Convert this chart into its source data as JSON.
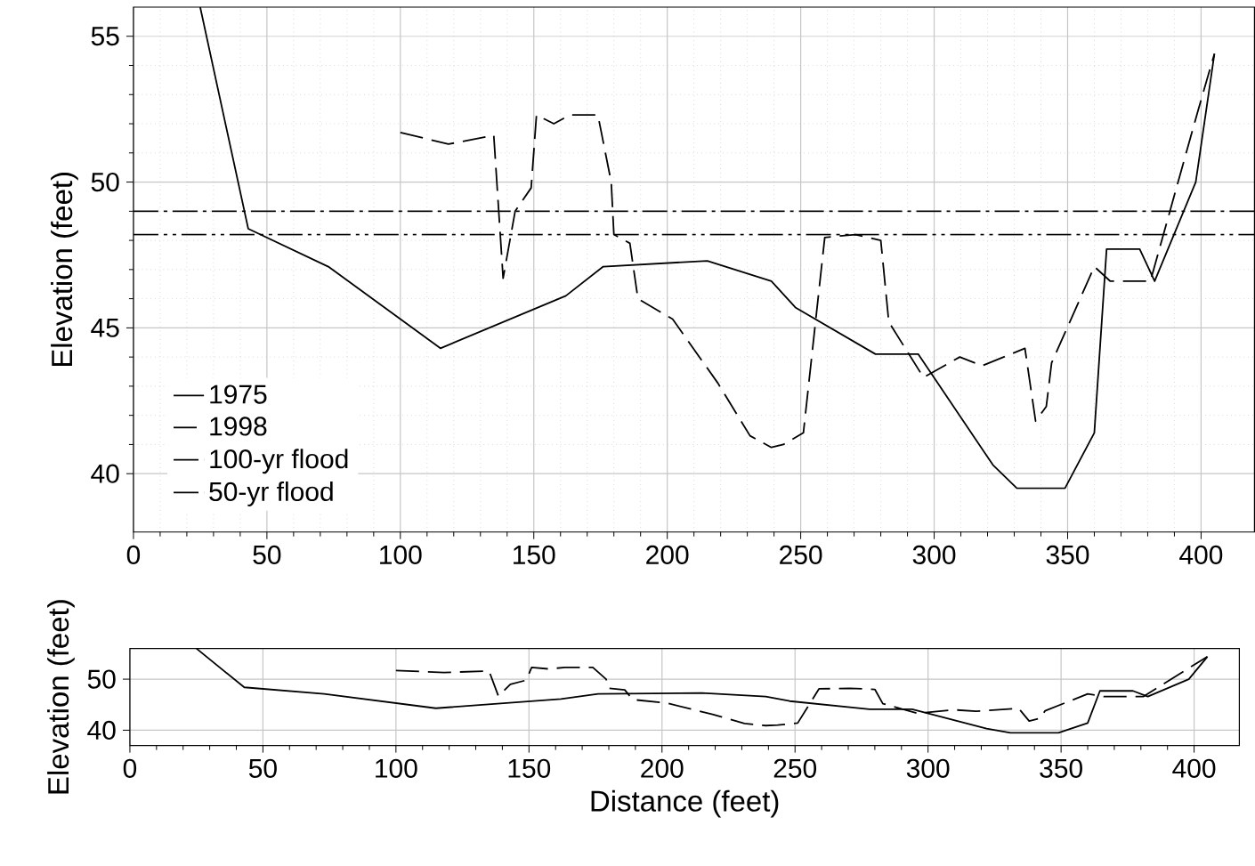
{
  "chart_data": [
    {
      "type": "line",
      "ylabel": "Elevation (feet)",
      "xlim": [
        0,
        420
      ],
      "ylim": [
        38,
        56
      ],
      "xticks": [
        0,
        50,
        100,
        150,
        200,
        250,
        300,
        350,
        400
      ],
      "yticks": [
        40,
        45,
        50,
        55
      ],
      "grid": true,
      "legend": "bottom left",
      "series": [
        {
          "name": "1975",
          "color": "#000000",
          "line_style": "solid",
          "x": [
            25,
            43,
            73,
            115,
            162,
            176,
            215,
            239,
            248,
            278,
            294,
            322,
            331,
            349,
            360,
            364.6,
            377,
            382.6,
            398,
            405
          ],
          "values": [
            56,
            48.4,
            47.1,
            44.3,
            46.1,
            47.1,
            47.3,
            46.6,
            45.7,
            44.1,
            44.1,
            40.3,
            39.5,
            39.5,
            41.4,
            47.7,
            47.7,
            46.6,
            50.0,
            54.4
          ]
        },
        {
          "name": "1998",
          "color": "#000000",
          "line_style": "dashed",
          "x": [
            100,
            118,
            135,
            138.5,
            143,
            149,
            151,
            157.5,
            163.5,
            174,
            179,
            180,
            186,
            189,
            202,
            219,
            231,
            239,
            243.5,
            251,
            259,
            270.5,
            280,
            283,
            296,
            309.6,
            318,
            334,
            338,
            342,
            344,
            360,
            366,
            381,
            399,
            405
          ],
          "values": [
            51.7,
            51.3,
            51.6,
            46.7,
            49.0,
            49.8,
            52.3,
            52.0,
            52.3,
            52.3,
            50.0,
            48.2,
            47.9,
            46.0,
            45.3,
            43.1,
            41.3,
            40.9,
            41.0,
            41.4,
            48.1,
            48.2,
            48.0,
            45.2,
            43.3,
            44.0,
            43.7,
            44.3,
            41.8,
            42.3,
            43.8,
            47.1,
            46.6,
            46.6,
            52.5,
            54.4
          ]
        }
      ],
      "ref_lines": [
        {
          "axis": "y",
          "value": 49.0,
          "label": "100-yr flood",
          "color": "#000000",
          "line_style": "dashdot"
        },
        {
          "axis": "y",
          "value": 48.2,
          "label": "50-yr flood",
          "color": "#000000",
          "line_style": "dashdotdot"
        }
      ]
    },
    {
      "type": "line",
      "xlabel": "Distance (feet)",
      "ylabel": "Elevation (feet)",
      "xlim": [
        0,
        417
      ],
      "ylim": [
        37,
        56
      ],
      "xticks": [
        0,
        50,
        100,
        150,
        200,
        250,
        300,
        350,
        400
      ],
      "yticks": [
        40,
        50
      ],
      "grid": true,
      "series": [
        {
          "color": "#000000",
          "line_style": "solid",
          "x": [
            25,
            43,
            73,
            115,
            162,
            176,
            215,
            239,
            248,
            278,
            294,
            322,
            331,
            349,
            360,
            364.6,
            377,
            382.6,
            398,
            405
          ],
          "values": [
            56,
            48.4,
            47.1,
            44.3,
            46.1,
            47.1,
            47.3,
            46.6,
            45.7,
            44.1,
            44.1,
            40.3,
            39.5,
            39.5,
            41.4,
            47.7,
            47.7,
            46.6,
            50.0,
            54.4
          ]
        },
        {
          "color": "#000000",
          "line_style": "dashed",
          "x": [
            100,
            118,
            135,
            138.5,
            143,
            149,
            151,
            157.5,
            163.5,
            174,
            179,
            180,
            186,
            189,
            202,
            219,
            231,
            239,
            243.5,
            251,
            259,
            270.5,
            280,
            283,
            296,
            309.6,
            318,
            334,
            338,
            342,
            344,
            360,
            366,
            381,
            399,
            405
          ],
          "values": [
            51.7,
            51.3,
            51.6,
            46.7,
            49.0,
            49.8,
            52.3,
            52.0,
            52.3,
            52.3,
            50.0,
            48.2,
            47.9,
            46.0,
            45.3,
            43.1,
            41.3,
            40.9,
            41.0,
            41.4,
            48.1,
            48.2,
            48.0,
            45.2,
            43.3,
            44.0,
            43.7,
            44.3,
            41.8,
            42.3,
            43.8,
            47.1,
            46.6,
            46.6,
            52.5,
            54.4
          ]
        }
      ]
    }
  ]
}
